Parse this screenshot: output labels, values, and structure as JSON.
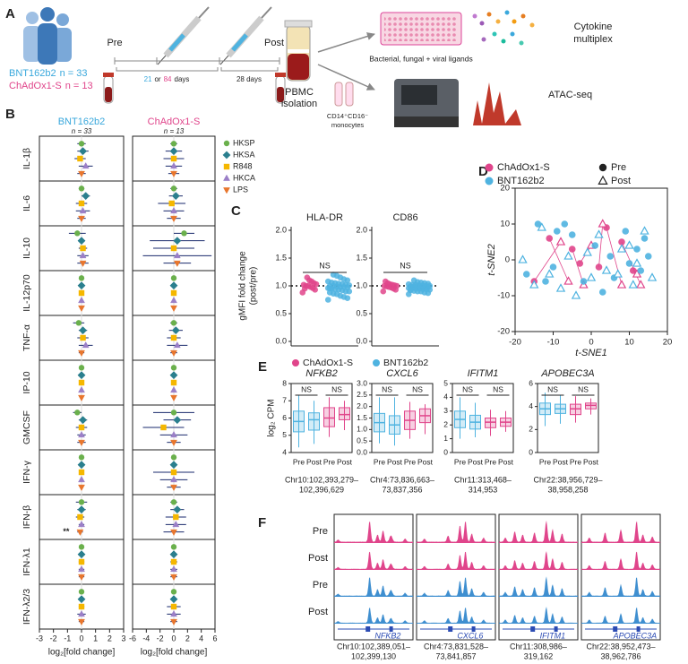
{
  "panel_labels": [
    "A",
    "B",
    "C",
    "D",
    "E",
    "F"
  ],
  "panel_a": {
    "groups": [
      {
        "name": "BNT162b2",
        "n": "n = 33"
      },
      {
        "name": "ChAdOx1-S",
        "n": "n = 13"
      }
    ],
    "pre": "Pre",
    "post": "Post",
    "interval_1": {
      "a": "21",
      "or": "or",
      "b": "84",
      "unit": "days"
    },
    "interval_2": "28 days",
    "pbmc": [
      "PBMC",
      "isolation"
    ],
    "ligands": "Bacterial, fungal + viral ligands",
    "cytokine": [
      "Cytokine",
      "multiplex"
    ],
    "monocytes": [
      "CD14⁺CD16⁻",
      "monocytes"
    ],
    "atac": "ATAC-seq"
  },
  "chart_data": [
    {
      "type": "errorbar",
      "title": "BNT162b2",
      "subtitle": "n = 33",
      "title_color": "#3aa8dc",
      "categories": [
        "IL-1β",
        "IL-6",
        "IL-10",
        "IL-12p70",
        "TNF-α",
        "IP-10",
        "GMCSF",
        "IFN-γ",
        "IFN-β",
        "IFN-λ1",
        "IFN-λ2/3"
      ],
      "xlabel": "log₂[fold change]",
      "xlim": [
        -3,
        3
      ],
      "xticks": [
        -3,
        -2,
        -1,
        0,
        1,
        2,
        3
      ],
      "annotations": [
        {
          "text": "**"
        }
      ],
      "series": [
        {
          "color": "#6ab04c",
          "marker": "circle",
          "values": [
            0,
            0,
            -0.3,
            0,
            -0.2,
            0,
            -0.3,
            0,
            0,
            0,
            0
          ],
          "errors": [
            0.3,
            0.2,
            0.6,
            0.1,
            0.4,
            0.1,
            0.3,
            0.1,
            0.4,
            0.1,
            0.1
          ]
        },
        {
          "color": "#2a7f8e",
          "marker": "diamond",
          "values": [
            0.1,
            0.3,
            0,
            0,
            0.1,
            0,
            0.1,
            0,
            0,
            0,
            0
          ],
          "errors": [
            0.4,
            0.3,
            0.2,
            0.1,
            0.3,
            0.1,
            0.3,
            0.1,
            0.3,
            0.2,
            0.1
          ]
        },
        {
          "color": "#f5b700",
          "marker": "square",
          "values": [
            -0.1,
            0,
            0.1,
            0,
            0.1,
            0,
            0,
            0,
            -0.1,
            0,
            0
          ],
          "errors": [
            0.4,
            0.4,
            0.3,
            0.1,
            0.4,
            0.1,
            0.4,
            0.1,
            0.3,
            0.2,
            0.2
          ]
        },
        {
          "color": "#9b7fc7",
          "marker": "triangle-up",
          "values": [
            0.3,
            0.1,
            0.1,
            0,
            0.3,
            0,
            0,
            0,
            0,
            0,
            0
          ],
          "errors": [
            0.5,
            0.5,
            0.4,
            0.1,
            0.5,
            0.1,
            0.3,
            0.1,
            0.2,
            0.2,
            0.3
          ]
        },
        {
          "color": "#e8762d",
          "marker": "triangle-down",
          "values": [
            0,
            0,
            0.1,
            0,
            0,
            0,
            0,
            0,
            -0.1,
            0,
            0
          ],
          "errors": [
            0.3,
            0.3,
            0.4,
            0.1,
            0.2,
            0.1,
            0.3,
            0.1,
            0.2,
            0.2,
            0.2
          ]
        }
      ]
    },
    {
      "type": "errorbar",
      "title": "ChAdOx1-S",
      "subtitle": "n = 13",
      "title_color": "#e0458b",
      "xlabel": "log₂[fold change]",
      "xlim": [
        -6,
        6
      ],
      "xticks": [
        -6,
        -4,
        -2,
        0,
        2,
        4,
        6
      ],
      "series": [
        {
          "name": "HKSP",
          "color": "#6ab04c",
          "marker": "circle",
          "values": [
            0,
            0,
            1.5,
            0,
            0,
            0,
            0,
            0,
            0,
            0,
            0
          ],
          "errors": [
            0.5,
            0.5,
            1.5,
            0.1,
            0.5,
            0.1,
            3,
            0.1,
            0.5,
            0.1,
            0.2
          ]
        },
        {
          "name": "HKSA",
          "color": "#2a7f8e",
          "marker": "diamond",
          "values": [
            0,
            0.3,
            0.5,
            0,
            0.3,
            0,
            0.5,
            0,
            0.5,
            0,
            0
          ],
          "errors": [
            1.2,
            1,
            4,
            0.1,
            1,
            0.1,
            2,
            0.1,
            1,
            0.3,
            0.5
          ]
        },
        {
          "name": "R848",
          "color": "#f5b700",
          "marker": "square",
          "values": [
            0,
            -0.3,
            0,
            0,
            0,
            0,
            -1.5,
            0,
            0.3,
            0,
            0
          ],
          "errors": [
            1.5,
            2,
            3,
            0.1,
            1,
            0.1,
            3,
            3,
            1.5,
            0.5,
            1
          ]
        },
        {
          "name": "HKCA",
          "color": "#9b7fc7",
          "marker": "triangle-up",
          "values": [
            0,
            0,
            0.5,
            0,
            0.5,
            0,
            0,
            0,
            0.3,
            0,
            0
          ],
          "errors": [
            1.2,
            1.5,
            5,
            0.1,
            1.5,
            0.1,
            2,
            2,
            1.5,
            0.5,
            1
          ]
        },
        {
          "name": "LPS",
          "color": "#e8762d",
          "marker": "triangle-down",
          "values": [
            0,
            0,
            0.5,
            0,
            0,
            0,
            0,
            0,
            0,
            0,
            0
          ],
          "errors": [
            0.8,
            1,
            2,
            0.1,
            0.5,
            0.1,
            1,
            1,
            1.5,
            0.5,
            0.5
          ]
        }
      ]
    },
    {
      "type": "strip",
      "title": "HLA-DR",
      "ylabel": [
        "gMFI fold change",
        "(post/pre)"
      ],
      "annotation": "NS",
      "ylim": [
        0,
        2
      ],
      "yticks": [
        {
          "value": 0,
          "label": "0.0"
        },
        {
          "value": 0.5,
          "label": "0.5"
        },
        {
          "value": 1,
          "label": "1.0"
        },
        {
          "value": 1.5,
          "label": "1.5"
        },
        {
          "value": 2,
          "label": "2.0"
        }
      ],
      "reference_line": 1,
      "series": [
        {
          "color": "#e0458b",
          "values": [
            0.88,
            0.93,
            0.96,
            0.98,
            1.0,
            1.0,
            1.02,
            1.03,
            1.05,
            1.08,
            1.1,
            1.15,
            0.95
          ]
        },
        {
          "color": "#4fb3e0",
          "values": [
            0.75,
            0.78,
            0.8,
            0.82,
            0.85,
            0.86,
            0.88,
            0.9,
            0.9,
            0.92,
            0.93,
            0.94,
            0.95,
            0.96,
            0.97,
            0.98,
            0.98,
            0.99,
            1.0,
            1.0,
            1.01,
            1.02,
            1.03,
            1.04,
            1.05,
            1.06,
            1.08,
            1.1,
            1.12,
            1.15,
            1.18,
            1.2,
            0.95
          ]
        }
      ]
    },
    {
      "type": "strip",
      "title": "CD86",
      "annotation": "NS",
      "ylim": [
        0,
        2
      ],
      "yticks": [
        {
          "value": 0,
          "label": "0.0"
        },
        {
          "value": 0.5,
          "label": "0.5"
        },
        {
          "value": 1,
          "label": "1.0"
        },
        {
          "value": 1.5,
          "label": "1.5"
        },
        {
          "value": 2,
          "label": "2.0"
        }
      ],
      "reference_line": 1,
      "series": [
        {
          "name": "ChAdOx1-S",
          "color": "#e0458b",
          "values": [
            0.9,
            0.93,
            0.95,
            0.97,
            0.98,
            0.99,
            1.0,
            1.0,
            1.01,
            1.02,
            1.03,
            1.05,
            1.08
          ]
        },
        {
          "name": "BNT162b2",
          "color": "#4fb3e0",
          "values": [
            0.85,
            0.87,
            0.88,
            0.9,
            0.9,
            0.91,
            0.92,
            0.93,
            0.94,
            0.94,
            0.95,
            0.95,
            0.96,
            0.96,
            0.97,
            0.97,
            0.98,
            0.98,
            0.99,
            0.99,
            1.0,
            1.0,
            1.01,
            1.01,
            1.02,
            1.02,
            1.03,
            1.04,
            1.05,
            1.06,
            1.07,
            1.1,
            0.93
          ]
        }
      ]
    },
    {
      "type": "scatter",
      "xlabel": "t-SNE1",
      "ylabel": "t-SNE2",
      "xlim": [
        -20,
        20
      ],
      "xticks": [
        -20,
        -10,
        0,
        10,
        20
      ],
      "ylim": [
        -20,
        20
      ],
      "yticks": [
        -20,
        -10,
        0,
        10,
        20
      ],
      "color_legend": [
        {
          "name": "ChAdOx1-S",
          "color": "#e0458b"
        },
        {
          "name": "BNT162b2",
          "color": "#4fb3e0"
        }
      ],
      "shape_legend": [
        {
          "name": "Pre",
          "marker": "circle"
        },
        {
          "name": "Post",
          "marker": "triangle-up-open"
        }
      ],
      "connect_pairs": true,
      "series": [
        {
          "color": "#e0458b",
          "marker": "circle",
          "x": [
            -15,
            -11,
            -5,
            -3,
            2,
            4,
            8,
            11
          ],
          "y": [
            -6,
            6,
            3,
            -1,
            -2,
            9,
            5,
            -3
          ]
        },
        {
          "color": "#e0458b",
          "marker": "triangle-up-open",
          "x": [
            -8,
            -6,
            -2,
            0,
            3,
            8,
            13,
            12
          ],
          "y": [
            5,
            -6,
            -7,
            4,
            10,
            -7,
            -7,
            -4
          ]
        },
        {
          "color": "#4fb3e0",
          "marker": "circle",
          "x": [
            -17,
            -14,
            -12,
            -10,
            -9,
            -7,
            -5,
            -2,
            1,
            3,
            5,
            6,
            9,
            10,
            12,
            13,
            14,
            15
          ],
          "y": [
            -4,
            10,
            -6,
            -2,
            8,
            10,
            7,
            -6,
            4,
            -9,
            1,
            -5,
            8,
            -1,
            3,
            -3,
            6,
            1
          ]
        },
        {
          "color": "#4fb3e0",
          "marker": "triangle-up-open",
          "x": [
            -18,
            -15,
            -13,
            -11,
            -8,
            -6,
            -4,
            -1,
            0,
            2,
            4,
            7,
            8,
            11,
            12,
            14,
            16,
            10
          ],
          "y": [
            0,
            -7,
            9,
            -4,
            -8,
            1,
            -10,
            2,
            -5,
            7,
            -3,
            -4,
            3,
            -7,
            -1,
            8,
            -5,
            4
          ]
        }
      ]
    },
    {
      "type": "box",
      "title": "NFKB2",
      "ylabel": "log₂ CPM",
      "categories": [
        "Pre",
        "Post",
        "Pre",
        "Post"
      ],
      "colors": [
        "#4fb3e0",
        "#4fb3e0",
        "#e0458b",
        "#e0458b"
      ],
      "annotations": [
        "NS",
        "NS"
      ],
      "caption": [
        "Chr10:102,393,279–",
        "102,396,629"
      ],
      "ylim": [
        4,
        8
      ],
      "yticks": [
        4,
        5,
        6,
        7,
        8
      ],
      "boxes": [
        {
          "min": 4.3,
          "q1": 5.2,
          "median": 5.8,
          "q3": 6.4,
          "max": 7.3
        },
        {
          "min": 4.5,
          "q1": 5.3,
          "median": 5.9,
          "q3": 6.3,
          "max": 7.0
        },
        {
          "min": 4.9,
          "q1": 5.5,
          "median": 6.0,
          "q3": 6.6,
          "max": 7.2
        },
        {
          "min": 5.3,
          "q1": 5.9,
          "median": 6.2,
          "q3": 6.6,
          "max": 7.0
        }
      ]
    },
    {
      "type": "box",
      "title": "CXCL6",
      "categories": [
        "Pre",
        "Post",
        "Pre",
        "Post"
      ],
      "colors": [
        "#4fb3e0",
        "#4fb3e0",
        "#e0458b",
        "#e0458b"
      ],
      "annotations": [
        "NS",
        "NS"
      ],
      "caption": [
        "Chr4:73,836,663–",
        "73,837,356"
      ],
      "ylim": [
        0,
        3
      ],
      "yticks": [
        {
          "value": 0,
          "label": "0.0"
        },
        {
          "value": 0.5,
          "label": "0.5"
        },
        {
          "value": 1,
          "label": "1.0"
        },
        {
          "value": 1.5,
          "label": "1.5"
        },
        {
          "value": 2,
          "label": "2.0"
        },
        {
          "value": 2.5,
          "label": "2.5"
        },
        {
          "value": 3,
          "label": "3.0"
        }
      ],
      "boxes": [
        {
          "min": 0.4,
          "q1": 0.9,
          "median": 1.3,
          "q3": 1.7,
          "max": 2.4
        },
        {
          "min": 0.3,
          "q1": 0.8,
          "median": 1.2,
          "q3": 1.6,
          "max": 2.4
        },
        {
          "min": 0.6,
          "q1": 1.0,
          "median": 1.4,
          "q3": 1.8,
          "max": 2.2
        },
        {
          "min": 0.8,
          "q1": 1.3,
          "median": 1.6,
          "q3": 1.9,
          "max": 2.1
        }
      ]
    },
    {
      "type": "box",
      "title": "IFITM1",
      "categories": [
        "Pre",
        "Post",
        "Pre",
        "Post"
      ],
      "colors": [
        "#4fb3e0",
        "#4fb3e0",
        "#e0458b",
        "#e0458b"
      ],
      "annotations": [
        "NS",
        "NS"
      ],
      "caption": [
        "Chr11:313,468–",
        "314,953"
      ],
      "ylim": [
        0,
        5
      ],
      "yticks": [
        0,
        1,
        2,
        3,
        4,
        5
      ],
      "boxes": [
        {
          "min": 1.0,
          "q1": 1.8,
          "median": 2.4,
          "q3": 3.0,
          "max": 4.0
        },
        {
          "min": 1.1,
          "q1": 1.7,
          "median": 2.2,
          "q3": 2.7,
          "max": 3.6
        },
        {
          "min": 1.2,
          "q1": 1.8,
          "median": 2.2,
          "q3": 2.5,
          "max": 3.1
        },
        {
          "min": 1.5,
          "q1": 1.9,
          "median": 2.2,
          "q3": 2.5,
          "max": 3.0
        }
      ]
    },
    {
      "type": "box",
      "title": "APOBEC3A",
      "categories": [
        "Pre",
        "Post",
        "Pre",
        "Post"
      ],
      "colors": [
        "#4fb3e0",
        "#4fb3e0",
        "#e0458b",
        "#e0458b"
      ],
      "annotations": [
        "NS",
        "NS"
      ],
      "caption": [
        "Chr22:38,956,729–",
        "38,958,258"
      ],
      "ylim": [
        0,
        6
      ],
      "yticks": [
        0,
        2,
        4,
        6
      ],
      "boxes": [
        {
          "min": 2.3,
          "q1": 3.3,
          "median": 3.8,
          "q3": 4.3,
          "max": 5.2
        },
        {
          "min": 2.5,
          "q1": 3.4,
          "median": 3.8,
          "q3": 4.2,
          "max": 5.0
        },
        {
          "min": 2.6,
          "q1": 3.3,
          "median": 3.8,
          "q3": 4.2,
          "max": 4.9
        },
        {
          "min": 3.3,
          "q1": 3.8,
          "median": 4.1,
          "q3": 4.3,
          "max": 4.7
        }
      ]
    }
  ],
  "panel_f": {
    "rows": [
      "Pre",
      "Post",
      "Pre",
      "Post"
    ],
    "genes": [
      "NFKB2",
      "CXCL6",
      "IFITM1",
      "APOBEC3A"
    ],
    "coordinates": [
      [
        "Chr10:102,389,051–",
        "102,399,130"
      ],
      [
        "Chr4:73,831,528–",
        "73,841,857"
      ],
      [
        "Chr11:308,986–",
        "319,162"
      ],
      [
        "Chr22:38,952,473–",
        "38,962,786"
      ]
    ]
  }
}
